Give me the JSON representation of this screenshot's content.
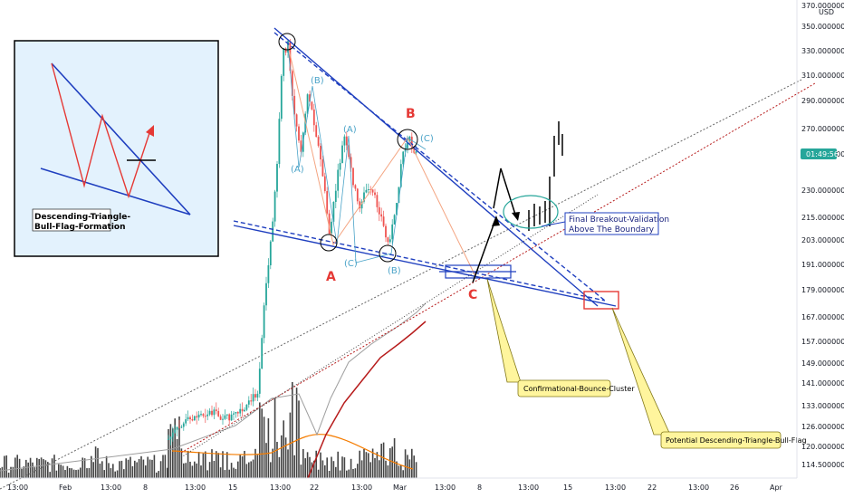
{
  "chart_data": {
    "type": "candlestick",
    "currency": "USD",
    "current_price_tag": "01:49:56",
    "y_ticks": [
      "370.0000000",
      "350.0000000",
      "330.0000000",
      "310.0000000",
      "290.0000000",
      "270.0000000",
      "250.0000000",
      "230.0000000",
      "215.0000000",
      "203.0000000",
      "191.0000000",
      "179.0000000",
      "167.0000000",
      "157.0000000",
      "149.0000000",
      "141.0000000",
      "133.0000000",
      "126.0000000",
      "120.0000000",
      "114.5000000"
    ],
    "x_ticks": [
      "13:00",
      "Feb",
      "13:00",
      "8",
      "13:00",
      "15",
      "13:00",
      "22",
      "13:00",
      "Mar",
      "13:00",
      "8",
      "13:00",
      "15",
      "13:00",
      "22",
      "13:00",
      "26",
      "Apr"
    ],
    "wave_labels": [
      "(A)",
      "(B)",
      "(A)",
      "(C)",
      "(B)",
      "(C)",
      "(B)"
    ],
    "pivot_labels": {
      "a": "A",
      "b": "B",
      "c": "C"
    },
    "inset_title": [
      "Descending-Triangle-",
      "Bull-Flag-Formation"
    ],
    "callout": [
      "Final Breakout-Validation",
      "Above The Boundary"
    ],
    "note_1": "Confirmational-Bounce-Cluster",
    "note_2": "Potential Descending-Triangle-Bull-Flag",
    "colors": {
      "up": "#26a69a",
      "down": "#ef5350",
      "trend": "#1f3fbf",
      "red_label": "#e53935",
      "wave": "#4aa3c8"
    }
  }
}
